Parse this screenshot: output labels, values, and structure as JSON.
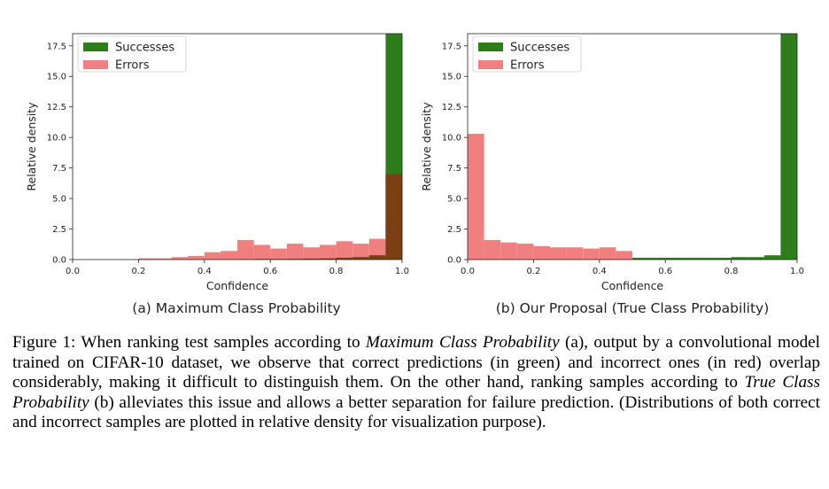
{
  "chart_data": [
    {
      "type": "bar",
      "subcaption": "(a) Maximum Class Probability",
      "xlabel": "Confidence",
      "ylabel": "Relative density",
      "xlim": [
        0.0,
        1.0
      ],
      "ylim": [
        0,
        18.5
      ],
      "xticks": [
        "0.0",
        "0.2",
        "0.4",
        "0.6",
        "0.8",
        "1.0"
      ],
      "yticks": [
        "0.0",
        "2.5",
        "5.0",
        "7.5",
        "10.0",
        "12.5",
        "15.0",
        "17.5"
      ],
      "legend": [
        "Successes",
        "Errors"
      ],
      "legend_position": "top-left",
      "bin_edges": [
        0.0,
        0.05,
        0.1,
        0.15,
        0.2,
        0.25,
        0.3,
        0.35,
        0.4,
        0.45,
        0.5,
        0.55,
        0.6,
        0.65,
        0.7,
        0.75,
        0.8,
        0.85,
        0.9,
        0.95,
        1.0
      ],
      "series": [
        {
          "name": "Successes",
          "color": "#2e7d1b",
          "values": [
            0,
            0,
            0,
            0,
            0,
            0,
            0,
            0,
            0,
            0,
            0.02,
            0.05,
            0.05,
            0.06,
            0.08,
            0.1,
            0.15,
            0.2,
            0.35,
            18.5
          ]
        },
        {
          "name": "Errors",
          "color": "#f08080",
          "values": [
            0,
            0,
            0,
            0,
            0.1,
            0.1,
            0.2,
            0.3,
            0.6,
            0.7,
            1.6,
            1.2,
            0.9,
            1.3,
            1.0,
            1.2,
            1.5,
            1.3,
            1.7,
            7.0
          ]
        }
      ]
    },
    {
      "type": "bar",
      "subcaption": "(b) Our Proposal (True Class Probability)",
      "xlabel": "Confidence",
      "ylabel": "Relative density",
      "xlim": [
        0.0,
        1.0
      ],
      "ylim": [
        0,
        18.5
      ],
      "xticks": [
        "0.0",
        "0.2",
        "0.4",
        "0.6",
        "0.8",
        "1.0"
      ],
      "yticks": [
        "0.0",
        "2.5",
        "5.0",
        "7.5",
        "10.0",
        "12.5",
        "15.0",
        "17.5"
      ],
      "legend": [
        "Successes",
        "Errors"
      ],
      "legend_position": "top-left",
      "bin_edges": [
        0.0,
        0.05,
        0.1,
        0.15,
        0.2,
        0.25,
        0.3,
        0.35,
        0.4,
        0.45,
        0.5,
        0.55,
        0.6,
        0.65,
        0.7,
        0.75,
        0.8,
        0.85,
        0.9,
        0.95,
        1.0
      ],
      "series": [
        {
          "name": "Successes",
          "color": "#2e7d1b",
          "values": [
            0,
            0,
            0,
            0,
            0,
            0,
            0,
            0,
            0,
            0,
            0.15,
            0.15,
            0.15,
            0.15,
            0.15,
            0.15,
            0.2,
            0.2,
            0.35,
            18.5
          ]
        },
        {
          "name": "Errors",
          "color": "#f08080",
          "values": [
            10.3,
            1.6,
            1.4,
            1.3,
            1.1,
            1.0,
            1.0,
            0.9,
            1.0,
            0.7,
            0,
            0,
            0,
            0,
            0,
            0,
            0,
            0,
            0,
            0
          ]
        }
      ]
    }
  ],
  "caption": {
    "label": "Figure 1:",
    "t1": " When ranking test samples according to ",
    "e1": "Maximum Class Probability",
    "t2": " (a), output by a convolutional model trained on CIFAR-10 dataset, we observe that correct predictions (in green) and incorrect ones (in red) overlap considerably, making it difficult to distinguish them. On the other hand, ranking samples according to ",
    "e2": "True Class Probability",
    "t3": " (b) alleviates this issue and allows a better separation for failure prediction. (Distributions of both correct and incorrect samples are plotted in relative density for visualization purpose)."
  }
}
